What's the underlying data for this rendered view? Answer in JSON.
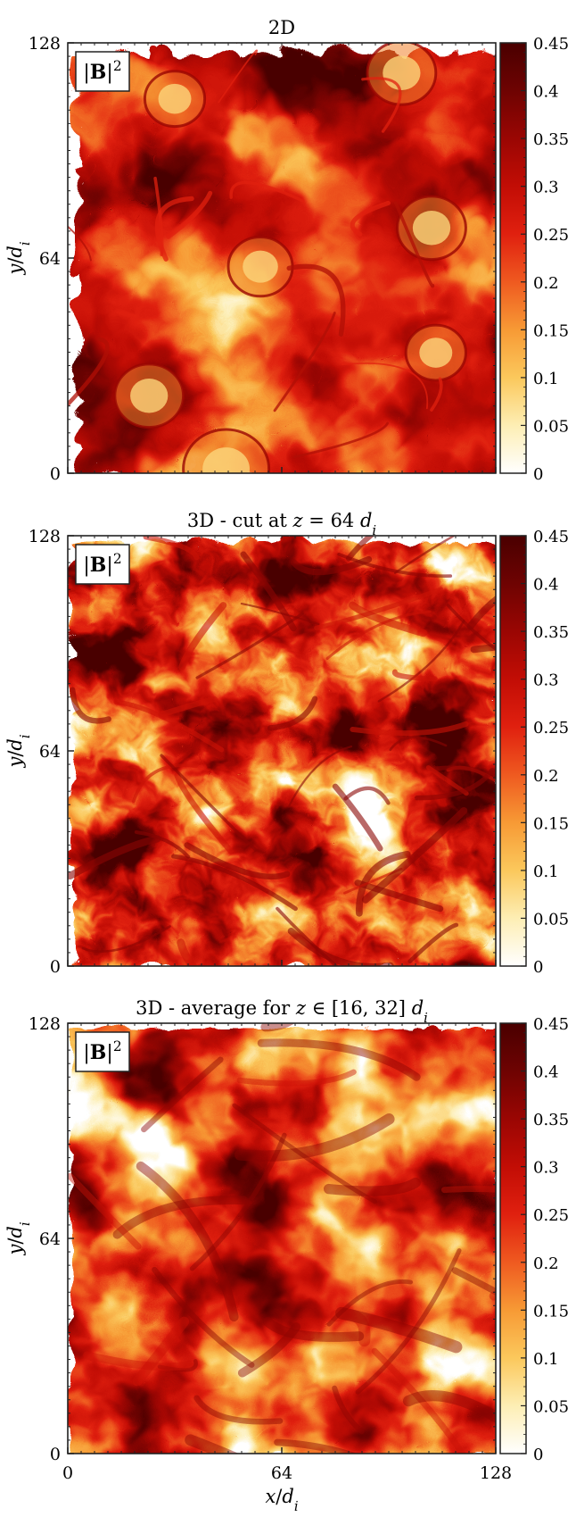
{
  "chart_data": [
    {
      "type": "heatmap",
      "title": "2D",
      "label": "|B|²",
      "xlim": [
        0,
        128
      ],
      "ylim": [
        0,
        128
      ],
      "x_ticks": [
        "0",
        "64",
        "128"
      ],
      "y_ticks": [
        "0",
        "64",
        "128"
      ],
      "xlabel": "",
      "ylabel": "y/di",
      "colorbar": {
        "range": [
          0,
          0.45
        ],
        "ticks": [
          "0",
          "0.05",
          "0.1",
          "0.15",
          "0.2",
          "0.25",
          "0.3",
          "0.35",
          "0.4",
          "0.45"
        ],
        "colors": [
          "#ffffff",
          "#fdeeb4",
          "#fbc85c",
          "#f79a35",
          "#ef5a20",
          "#e0200f",
          "#c20d05",
          "#9a0603",
          "#6e0302",
          "#4a0000"
        ]
      },
      "structure": "coherent magnetic islands and thin current sheets"
    },
    {
      "type": "heatmap",
      "title": "3D - cut at z = 64 di",
      "label": "|B|²",
      "xlim": [
        0,
        128
      ],
      "ylim": [
        0,
        128
      ],
      "x_ticks": [
        "0",
        "64",
        "128"
      ],
      "y_ticks": [
        "0",
        "64",
        "128"
      ],
      "xlabel": "",
      "ylabel": "y/di",
      "colorbar": {
        "range": [
          0,
          0.45
        ],
        "ticks": [
          "0",
          "0.05",
          "0.1",
          "0.15",
          "0.2",
          "0.25",
          "0.3",
          "0.35",
          "0.4",
          "0.45"
        ],
        "colors": [
          "#ffffff",
          "#fdeeb4",
          "#fbc85c",
          "#f79a35",
          "#ef5a20",
          "#e0200f",
          "#c20d05",
          "#9a0603",
          "#6e0302",
          "#4a0000"
        ]
      },
      "structure": "fragmented small-scale turbulent sheets"
    },
    {
      "type": "heatmap",
      "title": "3D - average for z ∈ [16, 32] di",
      "label": "|B|²",
      "xlim": [
        0,
        128
      ],
      "ylim": [
        0,
        128
      ],
      "x_ticks": [
        "0",
        "64",
        "128"
      ],
      "y_ticks": [
        "0",
        "64",
        "128"
      ],
      "xlabel": "x/di",
      "ylabel": "y/di",
      "colorbar": {
        "range": [
          0,
          0.45
        ],
        "ticks": [
          "0",
          "0.05",
          "0.1",
          "0.15",
          "0.2",
          "0.25",
          "0.3",
          "0.35",
          "0.4",
          "0.45"
        ],
        "colors": [
          "#ffffff",
          "#fdeeb4",
          "#fbc85c",
          "#f79a35",
          "#ef5a20",
          "#e0200f",
          "#c20d05",
          "#9a0603",
          "#6e0302",
          "#4a0000"
        ]
      },
      "structure": "smoother averaged turbulent structures"
    }
  ]
}
